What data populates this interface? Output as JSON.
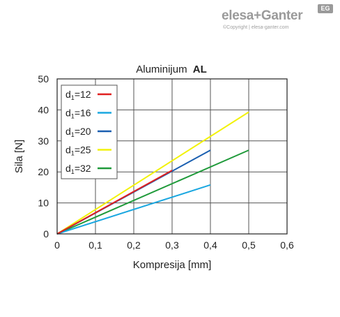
{
  "brand": {
    "name": "elesa+Ganter",
    "badge": "EG",
    "copyright": "©Copyright | elesa-ganter.com"
  },
  "chart_data": {
    "type": "line",
    "title_main": "Aluminijum",
    "title_bold": "AL",
    "xlabel": "Kompresija [mm]",
    "ylabel": "Sila [N]",
    "xlim": [
      0,
      0.6
    ],
    "ylim": [
      0,
      50
    ],
    "xticks": [
      "0",
      "0,1",
      "0,2",
      "0,3",
      "0,4",
      "0,5",
      "0,6"
    ],
    "yticks": [
      "0",
      "10",
      "20",
      "30",
      "40",
      "50"
    ],
    "grid": true,
    "legend_position": "top-left",
    "series": [
      {
        "name": "d1=12",
        "label_main": "d",
        "label_sub": "1",
        "label_rest": "=12",
        "color": "#e02020",
        "x": [
          0,
          0.3
        ],
        "y": [
          0,
          20.5
        ]
      },
      {
        "name": "d1=16",
        "label_main": "d",
        "label_sub": "1",
        "label_rest": "=16",
        "color": "#1aa7e0",
        "x": [
          0,
          0.4
        ],
        "y": [
          0,
          15.8
        ]
      },
      {
        "name": "d1=20",
        "label_main": "d",
        "label_sub": "1",
        "label_rest": "=20",
        "color": "#1a5fb0",
        "x": [
          0,
          0.4
        ],
        "y": [
          0,
          27
        ]
      },
      {
        "name": "d1=25",
        "label_main": "d",
        "label_sub": "1",
        "label_rest": "=25",
        "color": "#f2f20a",
        "x": [
          0,
          0.5
        ],
        "y": [
          0,
          39.3
        ]
      },
      {
        "name": "d1=32",
        "label_main": "d",
        "label_sub": "1",
        "label_rest": "=32",
        "color": "#1f9a3a",
        "x": [
          0,
          0.5
        ],
        "y": [
          0,
          27
        ]
      }
    ]
  }
}
